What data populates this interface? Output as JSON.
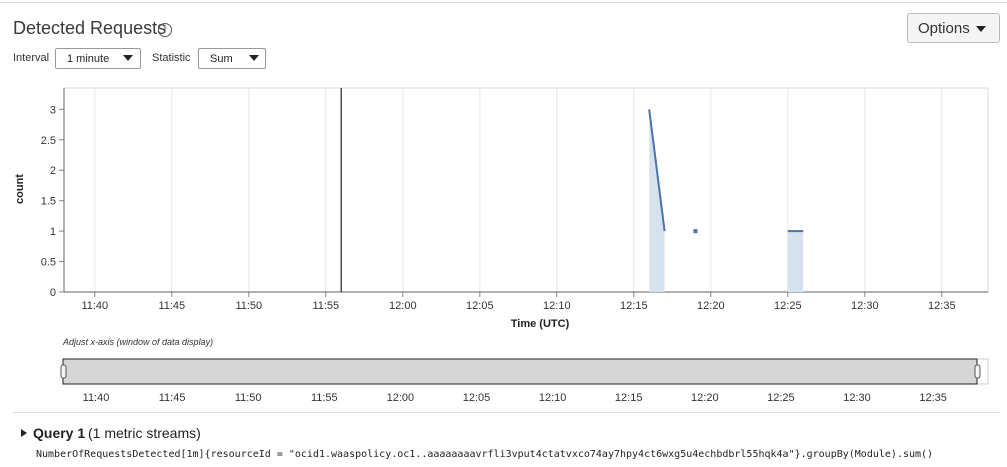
{
  "title": "Detected Requests",
  "info_icon": "info-icon",
  "options_label": "Options",
  "interval_label": "Interval",
  "interval_value": "1 minute",
  "statistic_label": "Statistic",
  "statistic_value": "Sum",
  "navigator_label": "Adjust x-axis (window of data display)",
  "query": {
    "title": "Query 1",
    "streams": "(1 metric streams)",
    "expression": "NumberOfRequestsDetected[1m]{resourceId = \"ocid1.waaspolicy.oc1..aaaaaaaavrfli3vput4ctatvxco74ay7hpy4ct6wxg5u4echbdbrl55hqk4a\"}.groupBy(Module).sum()"
  },
  "chart_data": {
    "type": "area",
    "xlabel": "Time (UTC)",
    "ylabel": "count",
    "xlim": [
      "11:38",
      "12:38"
    ],
    "ylim": [
      0,
      3.35
    ],
    "x_ticks": [
      "11:40",
      "11:45",
      "11:50",
      "11:55",
      "12:00",
      "12:05",
      "12:10",
      "12:15",
      "12:20",
      "12:25",
      "12:30",
      "12:35"
    ],
    "y_ticks": [
      "0",
      "0.5",
      "1",
      "1.5",
      "2",
      "2.5",
      "3"
    ],
    "cursor_time": "11:56",
    "grid": true,
    "series_color": "#4a74a8",
    "series": [
      {
        "points": [
          {
            "x": "12:16",
            "y": 3
          },
          {
            "x": "12:17",
            "y": 1
          }
        ]
      },
      {
        "points": [
          {
            "x": "12:19",
            "y": 1
          }
        ]
      },
      {
        "points": [
          {
            "x": "12:25",
            "y": 1
          },
          {
            "x": "12:26",
            "y": 1
          }
        ]
      }
    ],
    "navigator_ticks": [
      "11:40",
      "11:45",
      "11:50",
      "11:55",
      "12:00",
      "12:05",
      "12:10",
      "12:15",
      "12:20",
      "12:25",
      "12:30",
      "12:35"
    ]
  }
}
